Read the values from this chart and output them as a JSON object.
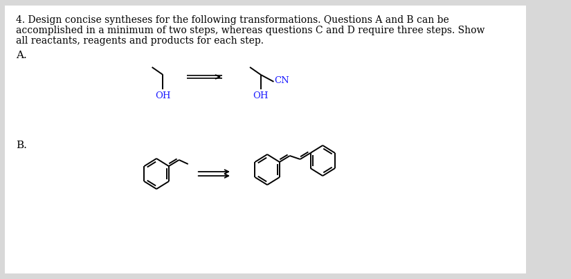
{
  "background_color": "#d8d8d8",
  "page_bg": "#ffffff",
  "text_color": "#000000",
  "blue_text": "#1a1aff",
  "title_line1": "4. Design concise syntheses for the following transformations. Questions A and B can be",
  "title_line2": "accomplished in a minimum of two steps, whereas questions C and D require three steps. Show",
  "title_line3": "all reactants, reagents and products for each step.",
  "label_A": "A.",
  "label_B": "B.",
  "title_fontsize": 10.0,
  "label_fontsize": 11,
  "chem_fontsize": 9.5
}
